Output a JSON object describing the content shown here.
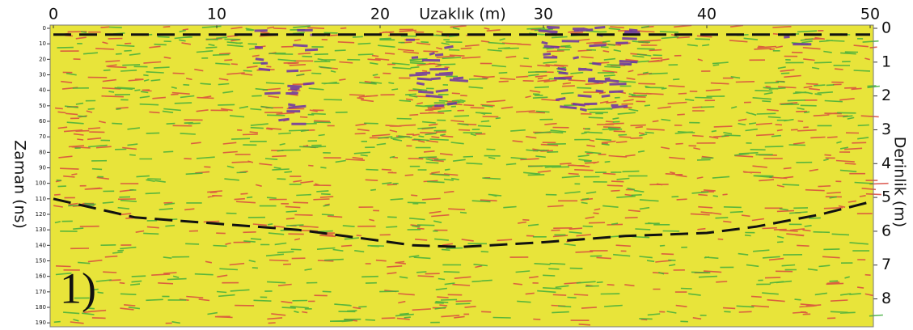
{
  "chart_data": {
    "type": "radargram",
    "xlabel": "Uzaklık (m)",
    "ylabel": "Zaman (ns)",
    "y2label": "Derinlik (m)",
    "annotation": "1)",
    "xlim": [
      0,
      50
    ],
    "xticks": [
      0,
      10,
      20,
      30,
      40,
      50
    ],
    "ylim": [
      0,
      192
    ],
    "yticks": [
      0,
      10,
      20,
      30,
      40,
      50,
      60,
      70,
      80,
      90,
      100,
      110,
      120,
      130,
      140,
      150,
      160,
      170,
      180,
      190
    ],
    "y2lim": [
      0,
      8.8
    ],
    "y2ticks": [
      0,
      1,
      2,
      3,
      4,
      5,
      6,
      7,
      8
    ],
    "series": [
      {
        "color": "#111111",
        "x": [
          0,
          50
        ],
        "values": [
          4,
          4
        ]
      },
      {
        "color": "#111111",
        "x": [
          0,
          5,
          10,
          15,
          20,
          22,
          25,
          30,
          35,
          40,
          43,
          47,
          50
        ],
        "values": [
          110,
          122,
          126,
          130,
          137,
          140,
          141,
          138,
          134,
          132,
          128,
          120,
          112
        ]
      }
    ]
  }
}
